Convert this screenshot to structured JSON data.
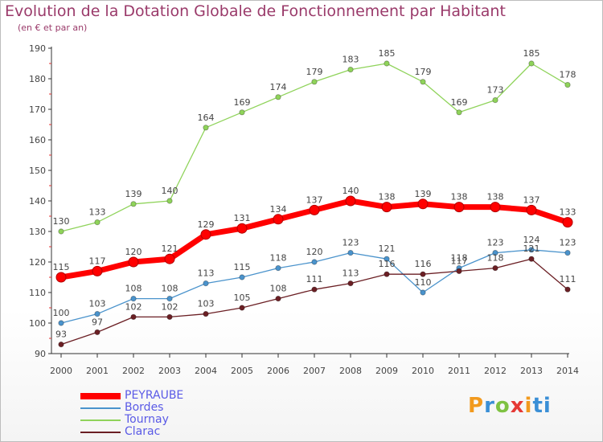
{
  "title": "Evolution de la Dotation Globale de Fonctionnement par Habitant",
  "subtitle": "(en € et par an)",
  "logo": "Proxiti",
  "chart_data": {
    "type": "line",
    "x": [
      "2000",
      "2001",
      "2002",
      "2003",
      "2004",
      "2005",
      "2006",
      "2007",
      "2008",
      "2009",
      "2010",
      "2011",
      "2012",
      "2013",
      "2014"
    ],
    "ylim": [
      90,
      190
    ],
    "yticks": [
      90,
      100,
      110,
      120,
      130,
      140,
      150,
      160,
      170,
      180,
      190
    ],
    "grid": false,
    "legend_position": "bottom-left",
    "series": [
      {
        "name": "PEYRAUBE",
        "color": "#ff0000",
        "values": [
          115,
          117,
          120,
          121,
          129,
          131,
          134,
          137,
          140,
          138,
          139,
          138,
          138,
          137,
          133
        ]
      },
      {
        "name": "Bordes",
        "color": "#4a93cc",
        "values": [
          100,
          103,
          108,
          108,
          113,
          115,
          118,
          120,
          123,
          121,
          110,
          118,
          123,
          124,
          123
        ]
      },
      {
        "name": "Tournay",
        "color": "#8fd35a",
        "values": [
          130,
          133,
          139,
          140,
          164,
          169,
          174,
          179,
          183,
          185,
          179,
          169,
          173,
          185,
          178
        ]
      },
      {
        "name": "Clarac",
        "color": "#6b1f24",
        "values": [
          93,
          97,
          102,
          102,
          103,
          105,
          108,
          111,
          113,
          116,
          116,
          117,
          118,
          121,
          111
        ]
      }
    ]
  }
}
